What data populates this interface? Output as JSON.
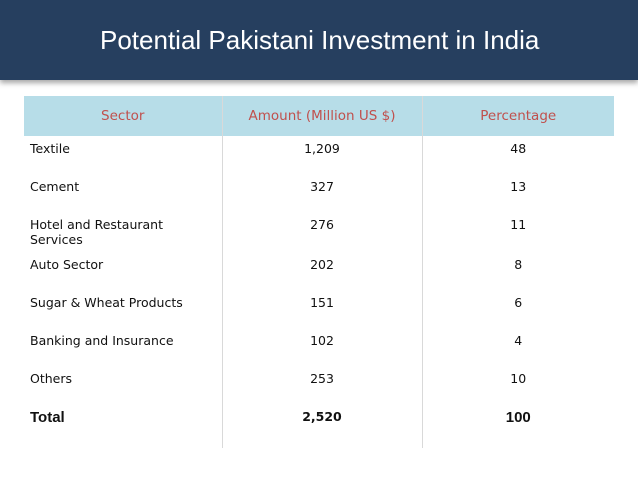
{
  "slide": {
    "title": "Potential Pakistani Investment in India"
  },
  "table": {
    "headers": [
      "Sector",
      "Amount (Million US $)",
      "Percentage"
    ],
    "rows": [
      {
        "sector": "Textile",
        "amount": "1,209",
        "percentage": "48"
      },
      {
        "sector": "Cement",
        "amount": "327",
        "percentage": "13"
      },
      {
        "sector": "Hotel and Restaurant Services",
        "amount": "276",
        "percentage": "11"
      },
      {
        "sector": "Auto Sector",
        "amount": "202",
        "percentage": "8"
      },
      {
        "sector": "Sugar & Wheat Products",
        "amount": "151",
        "percentage": "6"
      },
      {
        "sector": "Banking and Insurance",
        "amount": "102",
        "percentage": "4"
      },
      {
        "sector": "Others",
        "amount": "253",
        "percentage": "10"
      }
    ],
    "total": {
      "sector": "Total",
      "amount": "2,520",
      "percentage": "100"
    }
  },
  "colors": {
    "title_bar": "#263f5f",
    "header_bg": "#b7dde8",
    "header_text": "#c0504d"
  }
}
